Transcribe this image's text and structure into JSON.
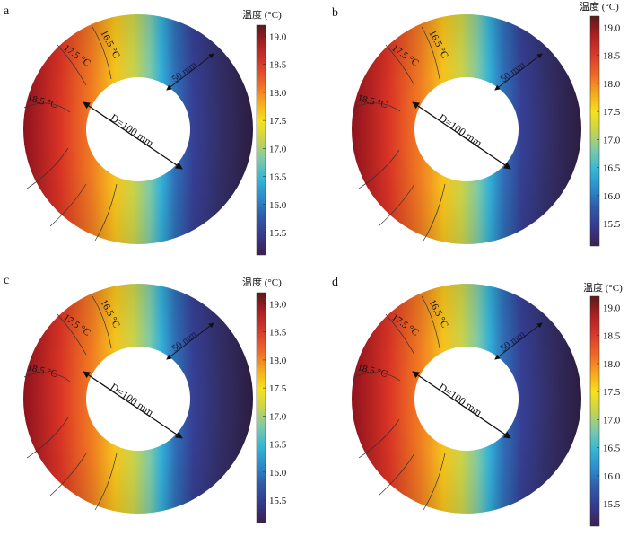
{
  "colorbar": {
    "title": "温度 (°C)",
    "ticks": [
      "19.0",
      "18.5",
      "18.0",
      "17.5",
      "17.0",
      "16.5",
      "16.0",
      "15.5"
    ],
    "min": 15.1,
    "max": 19.2,
    "colors": [
      "#3d1f4e",
      "#353a8e",
      "#2f5ba8",
      "#2b8ccc",
      "#35b7d4",
      "#7ccaa8",
      "#c7d44d",
      "#f7e21a",
      "#f7a51e",
      "#ef6526",
      "#d63a2c",
      "#ae1f22",
      "#5a1a1a"
    ]
  },
  "panels": [
    {
      "letter": "a",
      "labels": {
        "iso_185": "18.5 °C",
        "iso_175": "17.5 °C",
        "iso_165": "16.5 °C",
        "diameter": "D=100 mm",
        "thickness": "50 mm"
      }
    },
    {
      "letter": "b",
      "labels": {
        "iso_185": "18.5 °C",
        "iso_175": "17.5 °C",
        "iso_165": "16.5 °C",
        "diameter": "D=100 mm",
        "thickness": "50 mm"
      }
    },
    {
      "letter": "c",
      "labels": {
        "iso_185": "18.5 °C",
        "iso_175": "17.5 °C",
        "iso_165": "16.5 °C",
        "diameter": "D=100 mm",
        "thickness": "50 mm"
      }
    },
    {
      "letter": "d",
      "labels": {
        "iso_185": "18.5 °C",
        "iso_175": "17.5 °C",
        "iso_165": "16.5 °C",
        "diameter": "D=100 mm",
        "thickness": "50 mm"
      }
    }
  ]
}
